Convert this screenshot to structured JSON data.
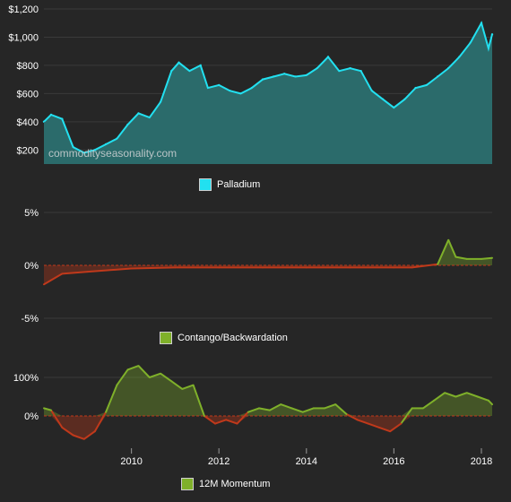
{
  "watermark": "commodityseasonality.com",
  "colors": {
    "background": "#262626",
    "palladium_line": "#22e0f0",
    "palladium_fill": "#2b6b6b",
    "positive": "#7fb02a",
    "negative": "#c0391b",
    "zero_line": "#c0391b"
  },
  "chart_data": [
    {
      "type": "area",
      "series": [
        {
          "name": "Palladium",
          "color": "#22e0f0"
        }
      ],
      "x_ticks": [
        "2010",
        "2012",
        "2014",
        "2016",
        "2018"
      ],
      "x": [
        "2008-01",
        "2008-03",
        "2008-06",
        "2008-09",
        "2008-12",
        "2009-03",
        "2009-06",
        "2009-09",
        "2009-12",
        "2010-03",
        "2010-06",
        "2010-09",
        "2010-12",
        "2011-02",
        "2011-05",
        "2011-08",
        "2011-10",
        "2012-01",
        "2012-04",
        "2012-07",
        "2012-10",
        "2013-01",
        "2013-04",
        "2013-07",
        "2013-10",
        "2014-01",
        "2014-04",
        "2014-07",
        "2014-10",
        "2015-01",
        "2015-04",
        "2015-07",
        "2015-10",
        "2016-01",
        "2016-04",
        "2016-07",
        "2016-10",
        "2017-01",
        "2017-04",
        "2017-07",
        "2017-10",
        "2018-01",
        "2018-03",
        "2018-04"
      ],
      "values": [
        400,
        450,
        420,
        220,
        180,
        200,
        240,
        280,
        380,
        460,
        430,
        540,
        760,
        820,
        760,
        800,
        640,
        660,
        620,
        600,
        640,
        700,
        720,
        740,
        720,
        730,
        780,
        860,
        760,
        780,
        760,
        620,
        560,
        500,
        560,
        640,
        660,
        720,
        780,
        860,
        960,
        1100,
        920,
        1020
      ],
      "y_ticks": [
        "$200",
        "$400",
        "$600",
        "$800",
        "$1,000",
        "$1,200"
      ],
      "ylim": [
        100,
        1200
      ]
    },
    {
      "type": "area",
      "series": [
        {
          "name": "Contango/Backwardation",
          "color": "#7fb02a"
        }
      ],
      "x": [
        "2008-01",
        "2008-06",
        "2009-01",
        "2010-01",
        "2011-01",
        "2012-01",
        "2013-01",
        "2014-01",
        "2015-01",
        "2016-01",
        "2016-06",
        "2017-01",
        "2017-04",
        "2017-06",
        "2017-09",
        "2018-01",
        "2018-04"
      ],
      "values": [
        -1.8,
        -0.8,
        -0.6,
        -0.3,
        -0.2,
        -0.2,
        -0.2,
        -0.2,
        -0.2,
        -0.2,
        -0.2,
        0.1,
        2.4,
        0.8,
        0.6,
        0.6,
        0.7
      ],
      "y_ticks": [
        "5%",
        "0%",
        "-5%"
      ],
      "ylim": [
        -6,
        6
      ]
    },
    {
      "type": "area",
      "series": [
        {
          "name": "12M Momentum",
          "color": "#7fb02a"
        }
      ],
      "x_ticks": [
        "2010",
        "2012",
        "2014",
        "2016",
        "2018"
      ],
      "x": [
        "2008-01",
        "2008-03",
        "2008-06",
        "2008-09",
        "2008-12",
        "2009-03",
        "2009-06",
        "2009-09",
        "2009-12",
        "2010-03",
        "2010-06",
        "2010-09",
        "2010-12",
        "2011-03",
        "2011-06",
        "2011-09",
        "2011-12",
        "2012-03",
        "2012-06",
        "2012-09",
        "2012-12",
        "2013-03",
        "2013-06",
        "2013-09",
        "2013-12",
        "2014-03",
        "2014-06",
        "2014-09",
        "2014-12",
        "2015-03",
        "2015-06",
        "2015-09",
        "2015-12",
        "2016-03",
        "2016-06",
        "2016-09",
        "2016-12",
        "2017-03",
        "2017-06",
        "2017-09",
        "2017-12",
        "2018-03",
        "2018-04"
      ],
      "values": [
        20,
        15,
        -30,
        -50,
        -60,
        -40,
        10,
        80,
        120,
        130,
        100,
        110,
        90,
        70,
        80,
        0,
        -20,
        -10,
        -20,
        10,
        20,
        15,
        30,
        20,
        10,
        20,
        20,
        30,
        5,
        -10,
        -20,
        -30,
        -40,
        -20,
        20,
        20,
        40,
        60,
        50,
        60,
        50,
        40,
        30
      ],
      "y_ticks": [
        "100%",
        "0%"
      ],
      "ylim": [
        -80,
        155
      ]
    }
  ]
}
